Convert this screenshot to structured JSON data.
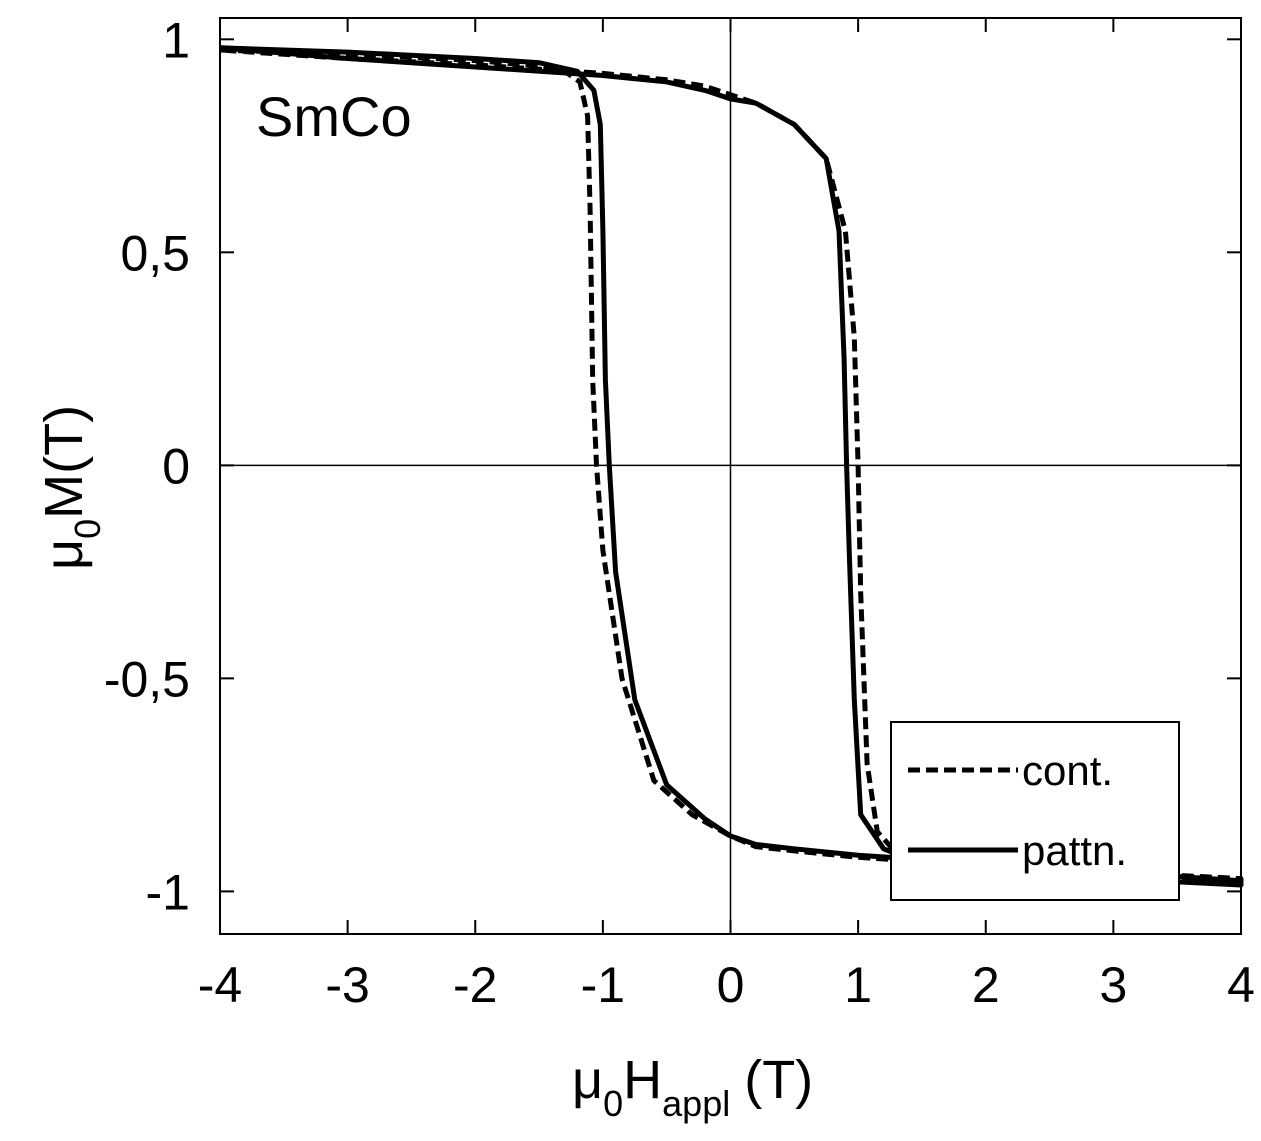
{
  "chart_data": {
    "type": "line",
    "annotation": "SmCo",
    "xlabel": {
      "main": "μ",
      "sub": "0",
      "main2": "H",
      "sub2": "appl",
      "unit": "(T)"
    },
    "ylabel": {
      "main": "μ",
      "sub": "0",
      "main2": "M(T)"
    },
    "xlim": [
      -4,
      4
    ],
    "ylim": [
      -1.1,
      1.05
    ],
    "xticks": [
      -4,
      -3,
      -2,
      -1,
      0,
      1,
      2,
      3,
      4
    ],
    "xtick_labels": [
      "-4",
      "-3",
      "-2",
      "-1",
      "0",
      "1",
      "2",
      "3",
      "4"
    ],
    "yticks": [
      -1,
      -0.5,
      0,
      0.5,
      1
    ],
    "ytick_labels": [
      "-1",
      "-0,5",
      "0",
      "0,5",
      "1"
    ],
    "grid": false,
    "zero_lines": true,
    "legend_position": "bottom-right",
    "series": [
      {
        "name": "cont.",
        "style": "dashed",
        "color": "#000000",
        "x": [
          -4.0,
          -3.0,
          -2.0,
          -1.6,
          -1.3,
          -1.18,
          -1.12,
          -1.1,
          -1.08,
          -1.05,
          -1.0,
          -0.85,
          -0.6,
          -0.3,
          0.0,
          0.2,
          0.5,
          1.0,
          2.0,
          3.0,
          4.0,
          4.0,
          3.0,
          2.0,
          1.6,
          1.3,
          1.15,
          1.07,
          1.02,
          1.0,
          0.97,
          0.9,
          0.75,
          0.5,
          0.2,
          0.0,
          -0.2,
          -0.5,
          -1.0,
          -2.0,
          -3.0,
          -4.0
        ],
        "y": [
          0.975,
          0.965,
          0.95,
          0.94,
          0.925,
          0.9,
          0.82,
          0.6,
          0.2,
          0.0,
          -0.2,
          -0.5,
          -0.74,
          -0.82,
          -0.87,
          -0.895,
          -0.905,
          -0.92,
          -0.94,
          -0.955,
          -0.97,
          -0.975,
          -0.965,
          -0.95,
          -0.935,
          -0.91,
          -0.86,
          -0.7,
          -0.3,
          0.0,
          0.3,
          0.55,
          0.72,
          0.8,
          0.85,
          0.87,
          0.89,
          0.905,
          0.92,
          0.94,
          0.955,
          0.975
        ]
      },
      {
        "name": "pattn.",
        "style": "solid",
        "color": "#000000",
        "x": [
          -4.0,
          -3.0,
          -2.0,
          -1.5,
          -1.2,
          -1.07,
          -1.02,
          -1.0,
          -0.98,
          -0.95,
          -0.9,
          -0.75,
          -0.5,
          -0.2,
          0.0,
          0.2,
          0.5,
          1.0,
          2.0,
          3.0,
          4.0,
          4.0,
          3.0,
          2.0,
          1.5,
          1.2,
          1.02,
          0.97,
          0.93,
          0.91,
          0.89,
          0.85,
          0.75,
          0.5,
          0.2,
          0.0,
          -0.2,
          -0.5,
          -1.0,
          -2.0,
          -3.0,
          -4.0
        ],
        "y": [
          0.98,
          0.97,
          0.955,
          0.945,
          0.925,
          0.88,
          0.8,
          0.55,
          0.2,
          0.0,
          -0.25,
          -0.55,
          -0.75,
          -0.83,
          -0.87,
          -0.89,
          -0.9,
          -0.915,
          -0.935,
          -0.955,
          -0.975,
          -0.985,
          -0.97,
          -0.95,
          -0.935,
          -0.9,
          -0.82,
          -0.55,
          -0.2,
          0.0,
          0.25,
          0.55,
          0.72,
          0.8,
          0.85,
          0.86,
          0.88,
          0.9,
          0.915,
          0.935,
          0.955,
          0.98
        ]
      }
    ]
  }
}
